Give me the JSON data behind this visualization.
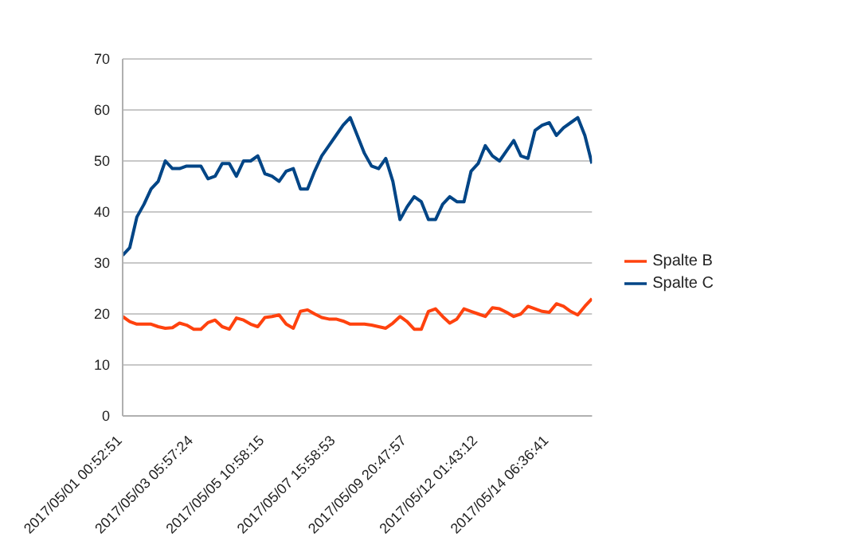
{
  "chart_data": {
    "type": "line",
    "categories": [
      "2017/05/01 00:52:51",
      null,
      null,
      null,
      null,
      null,
      null,
      null,
      null,
      null,
      "2017/05/03 05:57:24",
      null,
      null,
      null,
      null,
      null,
      null,
      null,
      null,
      null,
      "2017/05/05 10:58:15",
      null,
      null,
      null,
      null,
      null,
      null,
      null,
      null,
      null,
      "2017/05/07 15:58:53",
      null,
      null,
      null,
      null,
      null,
      null,
      null,
      null,
      null,
      "2017/05/09 20:47:57",
      null,
      null,
      null,
      null,
      null,
      null,
      null,
      null,
      null,
      "2017/05/12 01:43:12",
      null,
      null,
      null,
      null,
      null,
      null,
      null,
      null,
      null,
      "2017/05/14 06:36:41",
      null,
      null,
      null,
      null,
      null,
      null
    ],
    "series": [
      {
        "name": "Spalte B",
        "color": "#ff420e",
        "values": [
          19.5,
          18.5,
          18,
          18,
          18,
          17.5,
          17.2,
          17.3,
          18.2,
          17.8,
          17,
          17,
          18.3,
          18.8,
          17.5,
          17,
          19.2,
          18.8,
          18,
          17.5,
          19.3,
          19.5,
          19.8,
          18,
          17.2,
          20.5,
          20.8,
          20,
          19.3,
          19,
          19,
          18.6,
          18,
          18,
          18,
          17.8,
          17.5,
          17.2,
          18.2,
          19.5,
          18.5,
          17,
          17,
          20.5,
          21,
          19.5,
          18.2,
          19,
          21,
          20.5,
          20,
          19.5,
          21.2,
          21,
          20.3,
          19.5,
          20,
          21.5,
          21,
          20.5,
          20.3,
          22,
          21.5,
          20.5,
          19.8,
          21.5,
          23
        ]
      },
      {
        "name": "Spalte C",
        "color": "#004586",
        "values": [
          31.5,
          33,
          39,
          41.5,
          44.5,
          46,
          50,
          48.5,
          48.5,
          49,
          49,
          49,
          46.5,
          47,
          49.5,
          49.5,
          47,
          50,
          50,
          51,
          47.5,
          47,
          46,
          48,
          48.5,
          44.5,
          44.5,
          48,
          51,
          53,
          55,
          57,
          58.5,
          55,
          51.5,
          49,
          48.5,
          50.5,
          46,
          38.5,
          41,
          43,
          42,
          38.5,
          38.5,
          41.5,
          43,
          42,
          42,
          48,
          49.5,
          53,
          51,
          50,
          52,
          54,
          51,
          50.5,
          56,
          57,
          57.5,
          55,
          56.5,
          57.5,
          58.5,
          55,
          49.5
        ]
      }
    ],
    "ylim": [
      0,
      70
    ],
    "yticks": [
      0,
      10,
      20,
      30,
      40,
      50,
      60,
      70
    ],
    "grid": "y",
    "legend": "right"
  }
}
